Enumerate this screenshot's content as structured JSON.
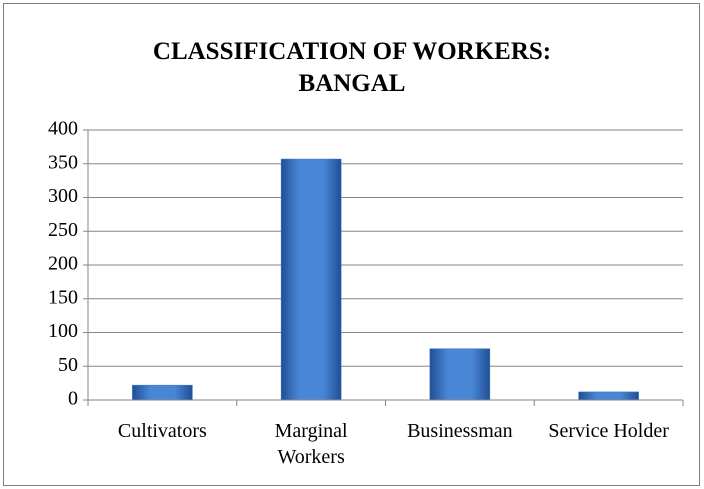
{
  "chart_data": {
    "type": "bar",
    "title": "CLASSIFICATION OF WORKERS: BANGAL",
    "categories": [
      "Cultivators",
      "Marginal Workers",
      "Businessman",
      "Service Holder"
    ],
    "values": [
      22,
      357,
      76,
      12
    ],
    "color": "#3f74c2",
    "ylim": [
      0,
      400
    ],
    "yticks": [
      0,
      50,
      100,
      150,
      200,
      250,
      300,
      350,
      400
    ],
    "grid": true
  }
}
